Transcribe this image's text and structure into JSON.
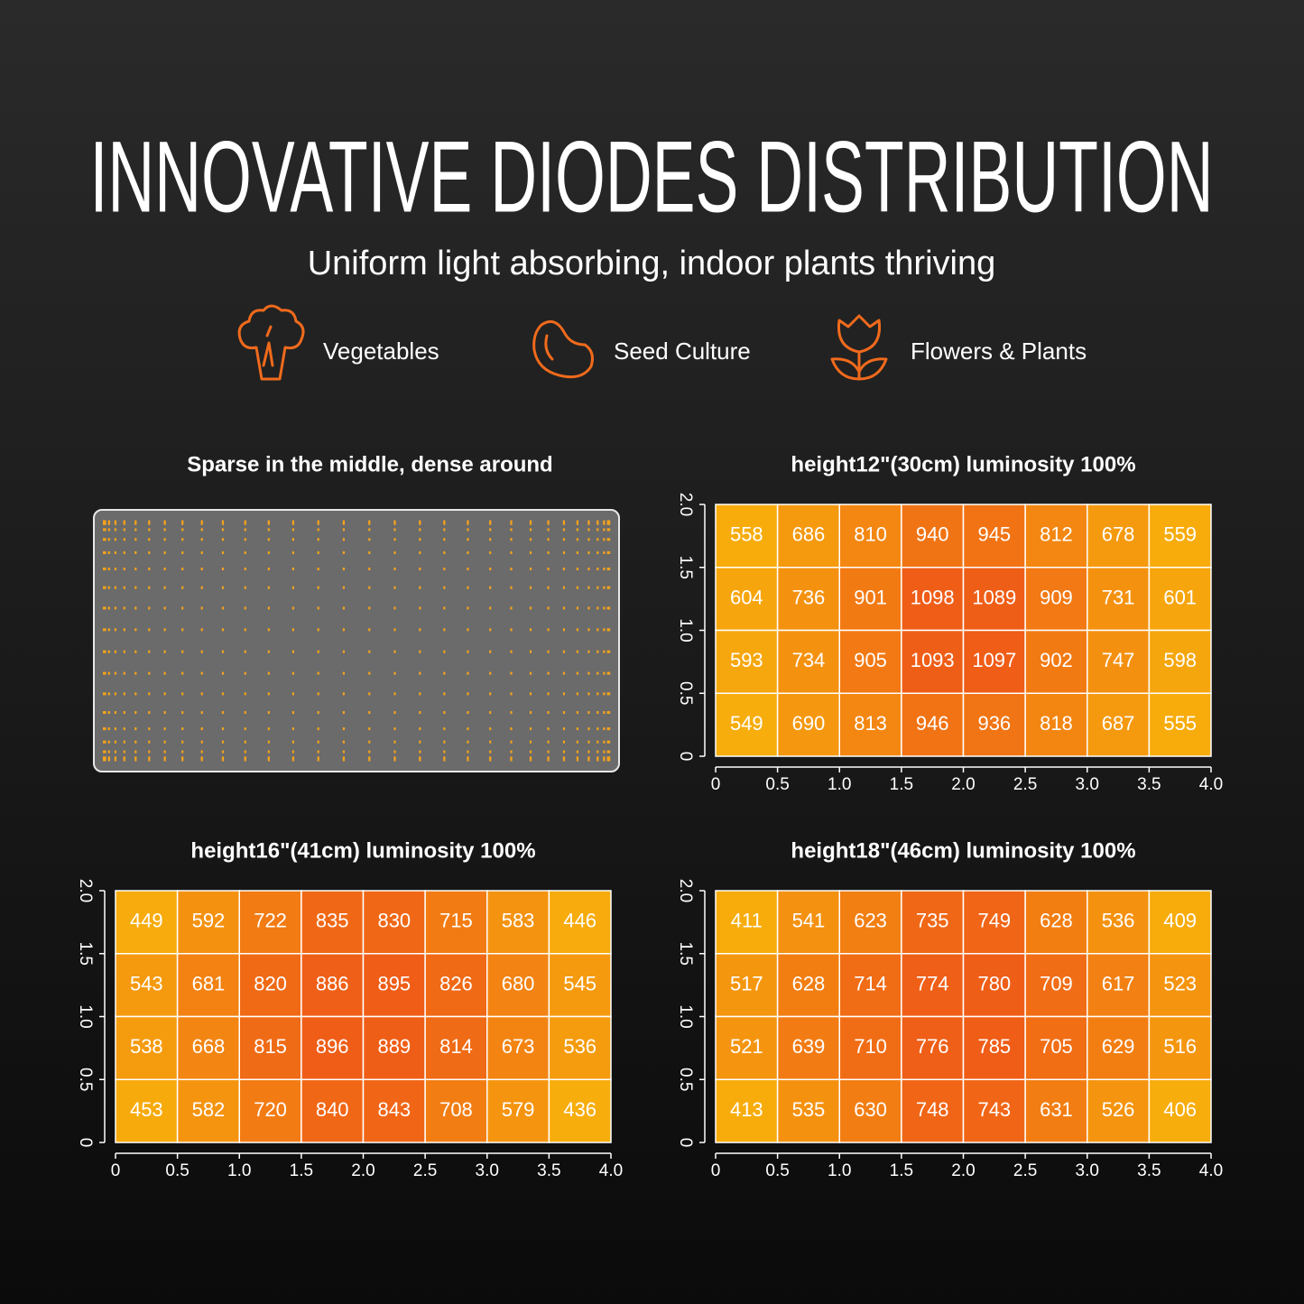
{
  "header": {
    "title": "INNOVATIVE DIODES DISTRIBUTION",
    "subtitle": "Uniform light absorbing, indoor plants thriving"
  },
  "features": [
    {
      "label": "Vegetables"
    },
    {
      "label": "Seed Culture"
    },
    {
      "label": "Flowers & Plants"
    }
  ],
  "panel": {
    "caption": "Sparse in the middle, dense around"
  },
  "chart_data": [
    {
      "type": "heatmap",
      "title": "height12\"(30cm)   luminosity 100%",
      "colors": [
        "#f7ad0c",
        "#ef5d17"
      ],
      "xlim": [
        0,
        4
      ],
      "xticks": [
        0,
        0.5,
        {
          "value": 1,
          "label": "1.0"
        },
        1.5,
        {
          "value": 2,
          "label": "2.0"
        },
        2.5,
        {
          "value": 3,
          "label": "3.0"
        },
        3.5,
        {
          "value": 4,
          "label": "4.0"
        }
      ],
      "ylim": [
        0,
        2
      ],
      "yticks": [
        0,
        0.5,
        {
          "value": 1,
          "label": "1.0"
        },
        1.5,
        {
          "value": 2,
          "label": "2.0"
        }
      ],
      "values": [
        [
          558,
          686,
          810,
          940,
          945,
          812,
          678,
          559
        ],
        [
          604,
          736,
          901,
          1098,
          1089,
          909,
          731,
          601
        ],
        [
          593,
          734,
          905,
          1093,
          1097,
          902,
          747,
          598
        ],
        [
          549,
          690,
          813,
          946,
          936,
          818,
          687,
          555
        ]
      ]
    },
    {
      "type": "heatmap",
      "title": "height16\"(41cm)   luminosity 100%",
      "colors": [
        "#f7ad0c",
        "#ef5d17"
      ],
      "xlim": [
        0,
        4
      ],
      "xticks": [
        0,
        0.5,
        {
          "value": 1,
          "label": "1.0"
        },
        1.5,
        {
          "value": 2,
          "label": "2.0"
        },
        2.5,
        {
          "value": 3,
          "label": "3.0"
        },
        3.5,
        {
          "value": 4,
          "label": "4.0"
        }
      ],
      "ylim": [
        0,
        2
      ],
      "yticks": [
        0,
        0.5,
        {
          "value": 1,
          "label": "1.0"
        },
        1.5,
        {
          "value": 2,
          "label": "2.0"
        }
      ],
      "values": [
        [
          449,
          592,
          722,
          835,
          830,
          715,
          583,
          446
        ],
        [
          543,
          681,
          820,
          886,
          895,
          826,
          680,
          545
        ],
        [
          538,
          668,
          815,
          896,
          889,
          814,
          673,
          536
        ],
        [
          453,
          582,
          720,
          840,
          843,
          708,
          579,
          436
        ]
      ]
    },
    {
      "type": "heatmap",
      "title": "height18\"(46cm)   luminosity 100%",
      "colors": [
        "#f7ad0c",
        "#ef5d17"
      ],
      "xlim": [
        0,
        4
      ],
      "xticks": [
        0,
        0.5,
        {
          "value": 1,
          "label": "1.0"
        },
        1.5,
        {
          "value": 2,
          "label": "2.0"
        },
        2.5,
        {
          "value": 3,
          "label": "3.0"
        },
        3.5,
        {
          "value": 4,
          "label": "4.0"
        }
      ],
      "ylim": [
        0,
        2
      ],
      "yticks": [
        0,
        0.5,
        {
          "value": 1,
          "label": "1.0"
        },
        1.5,
        {
          "value": 2,
          "label": "2.0"
        }
      ],
      "values": [
        [
          411,
          541,
          623,
          735,
          749,
          628,
          536,
          409
        ],
        [
          517,
          628,
          714,
          774,
          780,
          709,
          617,
          523
        ],
        [
          521,
          639,
          710,
          776,
          785,
          705,
          629,
          516
        ],
        [
          413,
          535,
          630,
          748,
          743,
          631,
          526,
          406
        ]
      ]
    }
  ]
}
